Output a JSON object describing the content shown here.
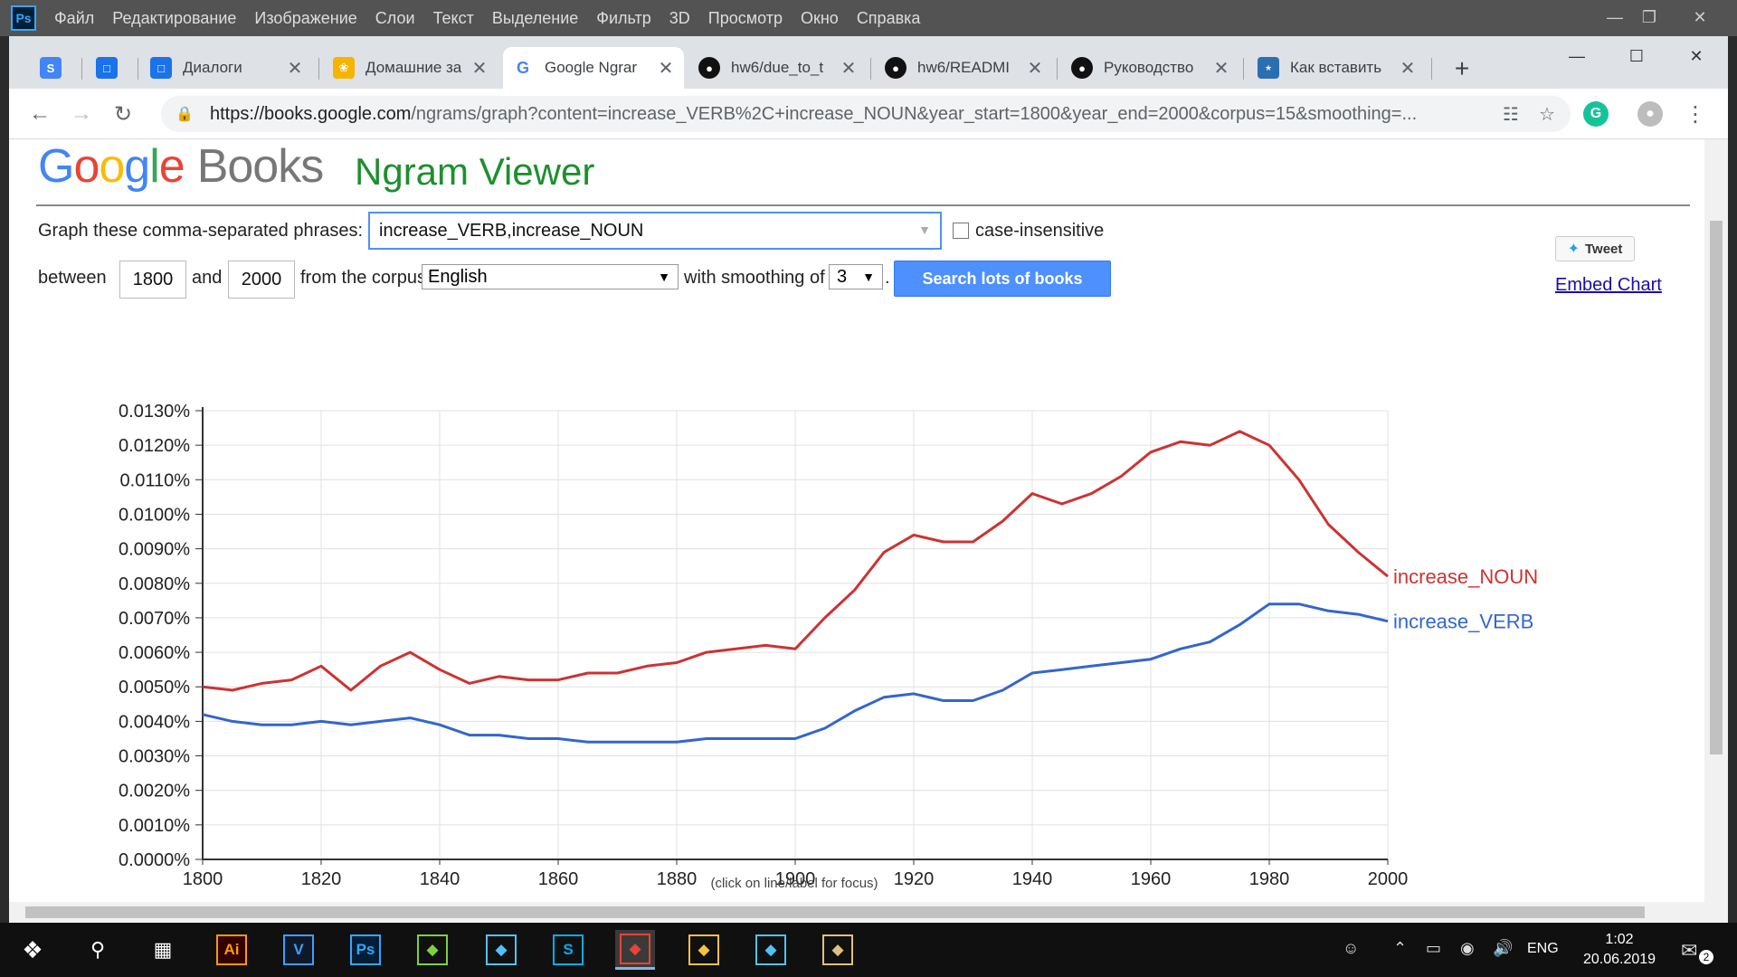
{
  "ps_menu": {
    "logo": "Ps",
    "items": [
      "Файл",
      "Редактирование",
      "Изображение",
      "Слои",
      "Текст",
      "Выделение",
      "Фильтр",
      "3D",
      "Просмотр",
      "Окно",
      "Справка"
    ]
  },
  "tabs": [
    {
      "title": "",
      "icon": "skype-icon",
      "color": "#4285f4"
    },
    {
      "title": "",
      "icon": "chat-icon",
      "color": "#1a73e8"
    },
    {
      "title": "Диалоги",
      "icon": "chat-icon",
      "color": "#1a73e8"
    },
    {
      "title": "Домашние за",
      "icon": "tree-icon",
      "color": "#f4b400"
    },
    {
      "title": "Google Ngrar",
      "icon": "google-icon",
      "color": "#4285f4"
    },
    {
      "title": "hw6/due_to_t",
      "icon": "github-icon",
      "color": "#111111"
    },
    {
      "title": "hw6/READMI",
      "icon": "github-icon",
      "color": "#111111"
    },
    {
      "title": "Руководство",
      "icon": "github-icon",
      "color": "#111111"
    },
    {
      "title": "Как вставить",
      "icon": "star-blog-icon",
      "color": "#2b6fb3"
    }
  ],
  "address": {
    "host": "https://books.google.com",
    "path": "/ngrams/graph?content=increase_VERB%2C+increase_NOUN&year_start=1800&year_end=2000&corpus=15&smoothing=..."
  },
  "page": {
    "logo_google": [
      "G",
      "o",
      "o",
      "g",
      "l",
      "e"
    ],
    "logo_books": "Books",
    "title": "Ngram Viewer",
    "phrase_label": "Graph these comma-separated phrases:",
    "phrase_value": "increase_VERB,increase_NOUN",
    "case_label": "case-insensitive",
    "between_label": "between",
    "year_start": "1800",
    "and_label": "and",
    "year_end": "2000",
    "corpus_label": "from the corpus",
    "corpus_value": "English",
    "smoothing_label": "with smoothing of",
    "smoothing_value": "3",
    "period": ".",
    "search_button": "Search lots of books",
    "tweet": "Tweet",
    "embed": "Embed Chart",
    "footnote": "(click on line/label for focus)"
  },
  "chart_data": {
    "type": "line",
    "x": [
      1800,
      1805,
      1810,
      1815,
      1820,
      1825,
      1830,
      1835,
      1840,
      1845,
      1850,
      1855,
      1860,
      1865,
      1870,
      1875,
      1880,
      1885,
      1890,
      1895,
      1900,
      1905,
      1910,
      1915,
      1920,
      1925,
      1930,
      1935,
      1940,
      1945,
      1950,
      1955,
      1960,
      1965,
      1970,
      1975,
      1980,
      1985,
      1990,
      1995,
      2000
    ],
    "series": [
      {
        "name": "increase_NOUN",
        "color": "#cc3333",
        "values": [
          0.005,
          0.0049,
          0.0051,
          0.0052,
          0.0056,
          0.0049,
          0.0056,
          0.006,
          0.0055,
          0.0051,
          0.0053,
          0.0052,
          0.0052,
          0.0054,
          0.0054,
          0.0056,
          0.0057,
          0.006,
          0.0061,
          0.0062,
          0.0061,
          0.007,
          0.0078,
          0.0089,
          0.0094,
          0.0092,
          0.0092,
          0.0098,
          0.0106,
          0.0103,
          0.0106,
          0.0111,
          0.0118,
          0.0121,
          0.012,
          0.0124,
          0.012,
          0.011,
          0.0097,
          0.0089,
          0.0082
        ]
      },
      {
        "name": "increase_VERB",
        "color": "#3366cc",
        "values": [
          0.0042,
          0.004,
          0.0039,
          0.0039,
          0.004,
          0.0039,
          0.004,
          0.0041,
          0.0039,
          0.0036,
          0.0036,
          0.0035,
          0.0035,
          0.0034,
          0.0034,
          0.0034,
          0.0034,
          0.0035,
          0.0035,
          0.0035,
          0.0035,
          0.0038,
          0.0043,
          0.0047,
          0.0048,
          0.0046,
          0.0046,
          0.0049,
          0.0054,
          0.0055,
          0.0056,
          0.0057,
          0.0058,
          0.0061,
          0.0063,
          0.0068,
          0.0074,
          0.0074,
          0.0072,
          0.0071,
          0.0069
        ]
      }
    ],
    "xlim": [
      1800,
      2000
    ],
    "ylim": [
      0,
      0.013
    ],
    "x_ticks": [
      "1800",
      "1820",
      "1840",
      "1860",
      "1880",
      "1900",
      "1920",
      "1940",
      "1960",
      "1980",
      "2000"
    ],
    "y_ticks": [
      "0.0000%",
      "0.0010%",
      "0.0020%",
      "0.0030%",
      "0.0040%",
      "0.0050%",
      "0.0060%",
      "0.0070%",
      "0.0080%",
      "0.0090%",
      "0.0100%",
      "0.0110%",
      "0.0120%",
      "0.0130%"
    ],
    "grid": true,
    "legend": "right-of-line-ends"
  },
  "taskbar": {
    "lang": "ENG",
    "time": "1:02",
    "date": "20.06.2019",
    "notif_count": "2",
    "apps": [
      {
        "name": "illustrator-icon",
        "label": "Ai",
        "color": "#ff9a00",
        "bg": "#330000"
      },
      {
        "name": "vegas-icon",
        "label": "V",
        "color": "#3aa0ff",
        "bg": "#101827"
      },
      {
        "name": "photoshop-icon",
        "label": "Ps",
        "color": "#31a8ff",
        "bg": "#001e36"
      },
      {
        "name": "pen-tool-icon",
        "label": "",
        "color": "#7fd13b",
        "bg": "#101010"
      },
      {
        "name": "apex-icon",
        "label": "",
        "color": "#4fc3f7",
        "bg": "#101010"
      },
      {
        "name": "skype-icon",
        "label": "S",
        "color": "#00aff0",
        "bg": "#101010"
      },
      {
        "name": "chrome-icon",
        "label": "",
        "color": "#ea4335",
        "bg": "#3a3a3a"
      },
      {
        "name": "file-explorer-icon",
        "label": "",
        "color": "#f5c242",
        "bg": "#101010"
      },
      {
        "name": "apex2-icon",
        "label": "",
        "color": "#4fc3f7",
        "bg": "#101010"
      },
      {
        "name": "paint-icon",
        "label": "",
        "color": "#e0c080",
        "bg": "#101010"
      }
    ]
  }
}
